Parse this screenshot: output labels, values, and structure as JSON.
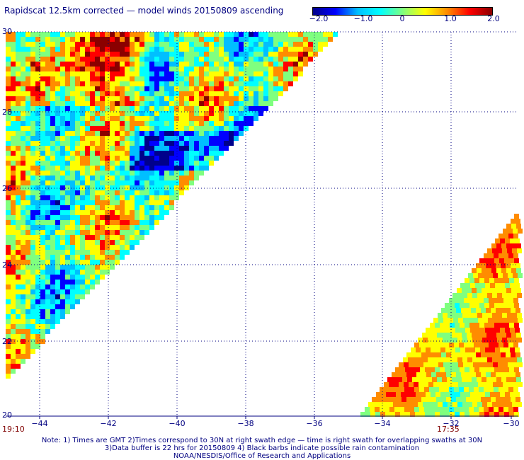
{
  "title": "Rapidscat 12.5km corrected — model winds 20150809 ascending",
  "colorbar": {
    "ticks": [
      "−2.0",
      "−1.0",
      "0",
      "1.0",
      "2.0"
    ],
    "min": -2.0,
    "max": 2.0,
    "colors": [
      "#00008b",
      "#0000ff",
      "#00bfff",
      "#00ffff",
      "#7fff7f",
      "#ffff00",
      "#ff8c00",
      "#ff0000",
      "#8b0000"
    ]
  },
  "map": {
    "lon_range": [
      -45,
      -30
    ],
    "lat_range": [
      20,
      30
    ],
    "lon_ticks": [
      "−44",
      "−42",
      "−40",
      "−38",
      "−36",
      "−34",
      "−32",
      "−30"
    ],
    "lat_ticks": [
      "30",
      "28",
      "26",
      "24",
      "22",
      "20"
    ],
    "gridlines": true,
    "swath_times": [
      "19:10",
      "17:35"
    ]
  },
  "notes": [
    "Note: 1) Times are GMT 2)Times correspond to 30N at right swath edge — time is right swath for overlapping swaths at 30N",
    "3)Data buffer is 22 hrs for 20150809 4) Black barbs indicate possible rain contamination",
    "NOAA/NESDIS/Office of Research and Applications"
  ]
}
